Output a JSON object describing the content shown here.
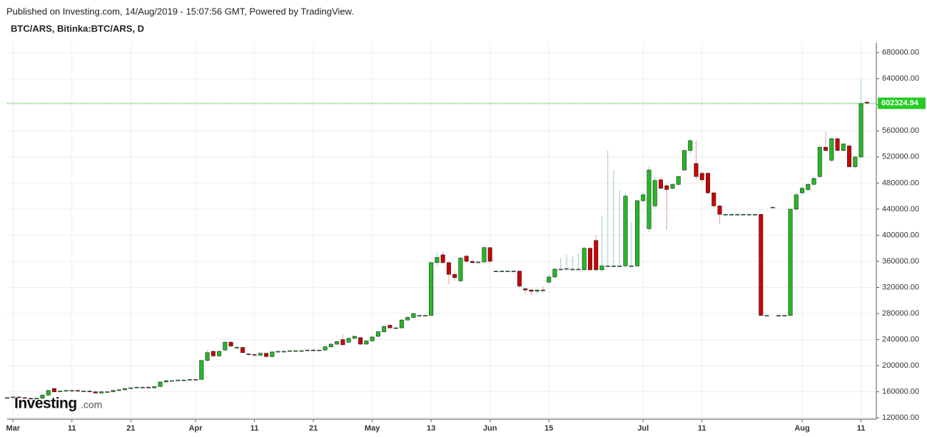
{
  "chart_data": {
    "type": "candlestick",
    "published": "Published on Investing.com, 14/Aug/2019 - 15:07:56 GMT, Powered by TradingView.",
    "title": "BTC/ARS, Bitinka:BTC/ARS, D",
    "logo": {
      "name": "Investing",
      "suffix": ".com"
    },
    "up_color": "#22bb22",
    "down_color": "#cc0000",
    "grid": true,
    "xlim": [
      0,
      147.6
    ],
    "xticks": [
      {
        "value": 1,
        "label": "Mar"
      },
      {
        "value": 11,
        "label": "11"
      },
      {
        "value": 21,
        "label": "21"
      },
      {
        "value": 32,
        "label": "Apr"
      },
      {
        "value": 42,
        "label": "11"
      },
      {
        "value": 52,
        "label": "21"
      },
      {
        "value": 62,
        "label": "May"
      },
      {
        "value": 72,
        "label": "13"
      },
      {
        "value": 82,
        "label": "Jun"
      },
      {
        "value": 92,
        "label": "15"
      },
      {
        "value": 108,
        "label": "Jul"
      },
      {
        "value": 118,
        "label": "11"
      },
      {
        "value": 135,
        "label": "Aug"
      },
      {
        "value": 145,
        "label": "11"
      }
    ],
    "ylim": [
      118000,
      695000
    ],
    "yticks": [
      {
        "value": 120000,
        "label": "120000.00"
      },
      {
        "value": 160000,
        "label": "160000.00"
      },
      {
        "value": 200000,
        "label": "200000.00"
      },
      {
        "value": 240000,
        "label": "240000.00"
      },
      {
        "value": 280000,
        "label": "280000.00"
      },
      {
        "value": 320000,
        "label": "320000.00"
      },
      {
        "value": 360000,
        "label": "360000.00"
      },
      {
        "value": 400000,
        "label": "400000.00"
      },
      {
        "value": 440000,
        "label": "440000.00"
      },
      {
        "value": 480000,
        "label": "480000.00"
      },
      {
        "value": 520000,
        "label": "520000.00"
      },
      {
        "value": 560000,
        "label": "560000.00"
      },
      {
        "value": 600000,
        "label": "600000.00"
      },
      {
        "value": 640000,
        "label": "640000.00"
      },
      {
        "value": 680000,
        "label": "680000.00"
      }
    ],
    "open": [
      150000,
      151000,
      152000,
      151000,
      150000,
      149000,
      150000,
      155000,
      165000,
      161000,
      161000,
      162000,
      162000,
      161000,
      161000,
      160000,
      158000,
      160000,
      160000,
      162000,
      163000,
      165000,
      166000,
      167000,
      167000,
      166000,
      168000,
      175000,
      177000,
      177000,
      178000,
      178000,
      179000,
      179000,
      208000,
      222000,
      215000,
      224000,
      236000,
      228000,
      228000,
      218000,
      217000,
      216000,
      219000,
      214000,
      221000,
      222000,
      222000,
      223000,
      223000,
      223000,
      224000,
      223000,
      224000,
      229000,
      233000,
      240000,
      236000,
      242000,
      243000,
      233000,
      238000,
      245000,
      252000,
      262000,
      258000,
      258000,
      270000,
      274000,
      276000,
      277000,
      277000,
      358000,
      370000,
      358000,
      340000,
      330000,
      368000,
      360000,
      358000,
      359000,
      381000,
      345000,
      345000,
      345000,
      345000,
      345000,
      318000,
      316000,
      314000,
      316000,
      328000,
      336000,
      348000,
      348000,
      348000,
      348000,
      347000,
      380000,
      392000,
      347000,
      353000,
      353000,
      353000,
      353000,
      353000,
      353000,
      453000,
      410000,
      445000,
      485000,
      476000,
      472000,
      478000,
      500000,
      530000,
      510000,
      495000,
      495000,
      465000,
      445000,
      432000,
      432000,
      432000,
      432000,
      432000,
      432000,
      432000,
      277000,
      443000,
      277000,
      277000,
      277000,
      440000,
      465000,
      470000,
      478000,
      490000,
      535000,
      515000,
      548000,
      530000,
      537000,
      505000,
      520000,
      604000
    ],
    "high": [
      152000,
      153000,
      153000,
      152000,
      151000,
      151000,
      156000,
      163000,
      166000,
      162000,
      162000,
      163000,
      163000,
      162000,
      162000,
      161000,
      161000,
      161000,
      163000,
      164000,
      166000,
      168000,
      168000,
      168000,
      168000,
      169000,
      176000,
      178000,
      178000,
      178000,
      179000,
      180000,
      180000,
      209000,
      224000,
      223000,
      223000,
      238000,
      238000,
      231000,
      229000,
      219000,
      219000,
      220000,
      220000,
      222000,
      223000,
      224000,
      223000,
      224000,
      224000,
      224000,
      225000,
      224000,
      230000,
      234000,
      238000,
      248000,
      243000,
      246000,
      244000,
      239000,
      245000,
      253000,
      262000,
      263000,
      260000,
      271000,
      276000,
      281000,
      278000,
      279000,
      359000,
      374000,
      375000,
      360000,
      345000,
      366000,
      370000,
      361000,
      360000,
      385000,
      382000,
      346000,
      346000,
      346000,
      346000,
      346000,
      320000,
      318000,
      318000,
      322000,
      340000,
      350000,
      365000,
      370000,
      368000,
      372000,
      382000,
      382000,
      400000,
      430000,
      530000,
      500000,
      470000,
      465000,
      420000,
      455000,
      466000,
      505000,
      490000,
      490000,
      480000,
      480000,
      492000,
      532000,
      548000,
      545000,
      498000,
      497000,
      467000,
      446000,
      433000,
      433000,
      433000,
      433000,
      433000,
      433000,
      433000,
      278000,
      444000,
      278000,
      278000,
      440000,
      465000,
      476000,
      480000,
      490000,
      538000,
      558000,
      550000,
      550000,
      540000,
      540000,
      522000,
      640000,
      606000
    ],
    "low": [
      149000,
      150000,
      150000,
      149000,
      148000,
      148000,
      149000,
      154000,
      159000,
      160000,
      160000,
      161000,
      160000,
      160000,
      159000,
      158000,
      157000,
      159000,
      159000,
      161000,
      162000,
      164000,
      165000,
      166000,
      165000,
      165000,
      167000,
      174000,
      176000,
      176000,
      177000,
      177000,
      178000,
      178000,
      206000,
      212000,
      213000,
      222000,
      229000,
      225000,
      219000,
      215000,
      215000,
      214000,
      212000,
      213000,
      219000,
      221000,
      221000,
      222000,
      222000,
      222000,
      222000,
      222000,
      223000,
      227000,
      231000,
      231000,
      235000,
      240000,
      232000,
      232000,
      237000,
      244000,
      250000,
      256000,
      256000,
      257000,
      268000,
      272000,
      275000,
      276000,
      276000,
      352000,
      355000,
      325000,
      330000,
      328000,
      358000,
      357000,
      355000,
      357000,
      357000,
      344000,
      344000,
      344000,
      344000,
      318000,
      310000,
      308000,
      310000,
      312000,
      325000,
      334000,
      346000,
      346000,
      346000,
      346000,
      345000,
      345000,
      345000,
      345000,
      352000,
      352000,
      352000,
      351000,
      352000,
      351000,
      450000,
      405000,
      440000,
      470000,
      408000,
      470000,
      476000,
      498000,
      525000,
      486000,
      480000,
      462000,
      442000,
      418000,
      431000,
      431000,
      431000,
      431000,
      431000,
      431000,
      276000,
      276000,
      442000,
      276000,
      276000,
      276000,
      438000,
      462000,
      468000,
      476000,
      488000,
      528000,
      512000,
      528000,
      528000,
      504000,
      502000,
      518000,
      601000
    ],
    "close": [
      151000,
      152000,
      151000,
      150000,
      149000,
      150000,
      155000,
      162000,
      160000,
      161000,
      162000,
      162000,
      161000,
      161000,
      160000,
      158000,
      160000,
      160000,
      162000,
      163000,
      165000,
      166000,
      167000,
      167000,
      166000,
      168000,
      175000,
      177000,
      177000,
      178000,
      178000,
      179000,
      179000,
      208000,
      220000,
      215000,
      222000,
      236000,
      230000,
      228000,
      220000,
      217000,
      216000,
      219000,
      214000,
      221000,
      222000,
      222000,
      223000,
      223000,
      223000,
      224000,
      223000,
      224000,
      229000,
      233000,
      237000,
      232000,
      242000,
      245000,
      233000,
      238000,
      244000,
      252000,
      260000,
      258000,
      258000,
      270000,
      274000,
      280000,
      277000,
      277000,
      358000,
      366000,
      358000,
      340000,
      335000,
      365000,
      360000,
      358000,
      359000,
      381000,
      360000,
      345000,
      345000,
      345000,
      345000,
      322000,
      316000,
      314000,
      316000,
      315000,
      336000,
      348000,
      348000,
      349000,
      348000,
      348000,
      380000,
      347000,
      347000,
      353000,
      353000,
      353000,
      353000,
      460000,
      353000,
      453000,
      462000,
      500000,
      484000,
      472000,
      470000,
      478000,
      490000,
      530000,
      545000,
      490000,
      485000,
      465000,
      445000,
      432000,
      432000,
      432000,
      432000,
      432000,
      432000,
      432000,
      277000,
      277000,
      443000,
      277000,
      277000,
      440000,
      462000,
      472000,
      478000,
      487000,
      535000,
      530000,
      548000,
      530000,
      540000,
      505000,
      520000,
      602000,
      602324.94
    ]
  }
}
